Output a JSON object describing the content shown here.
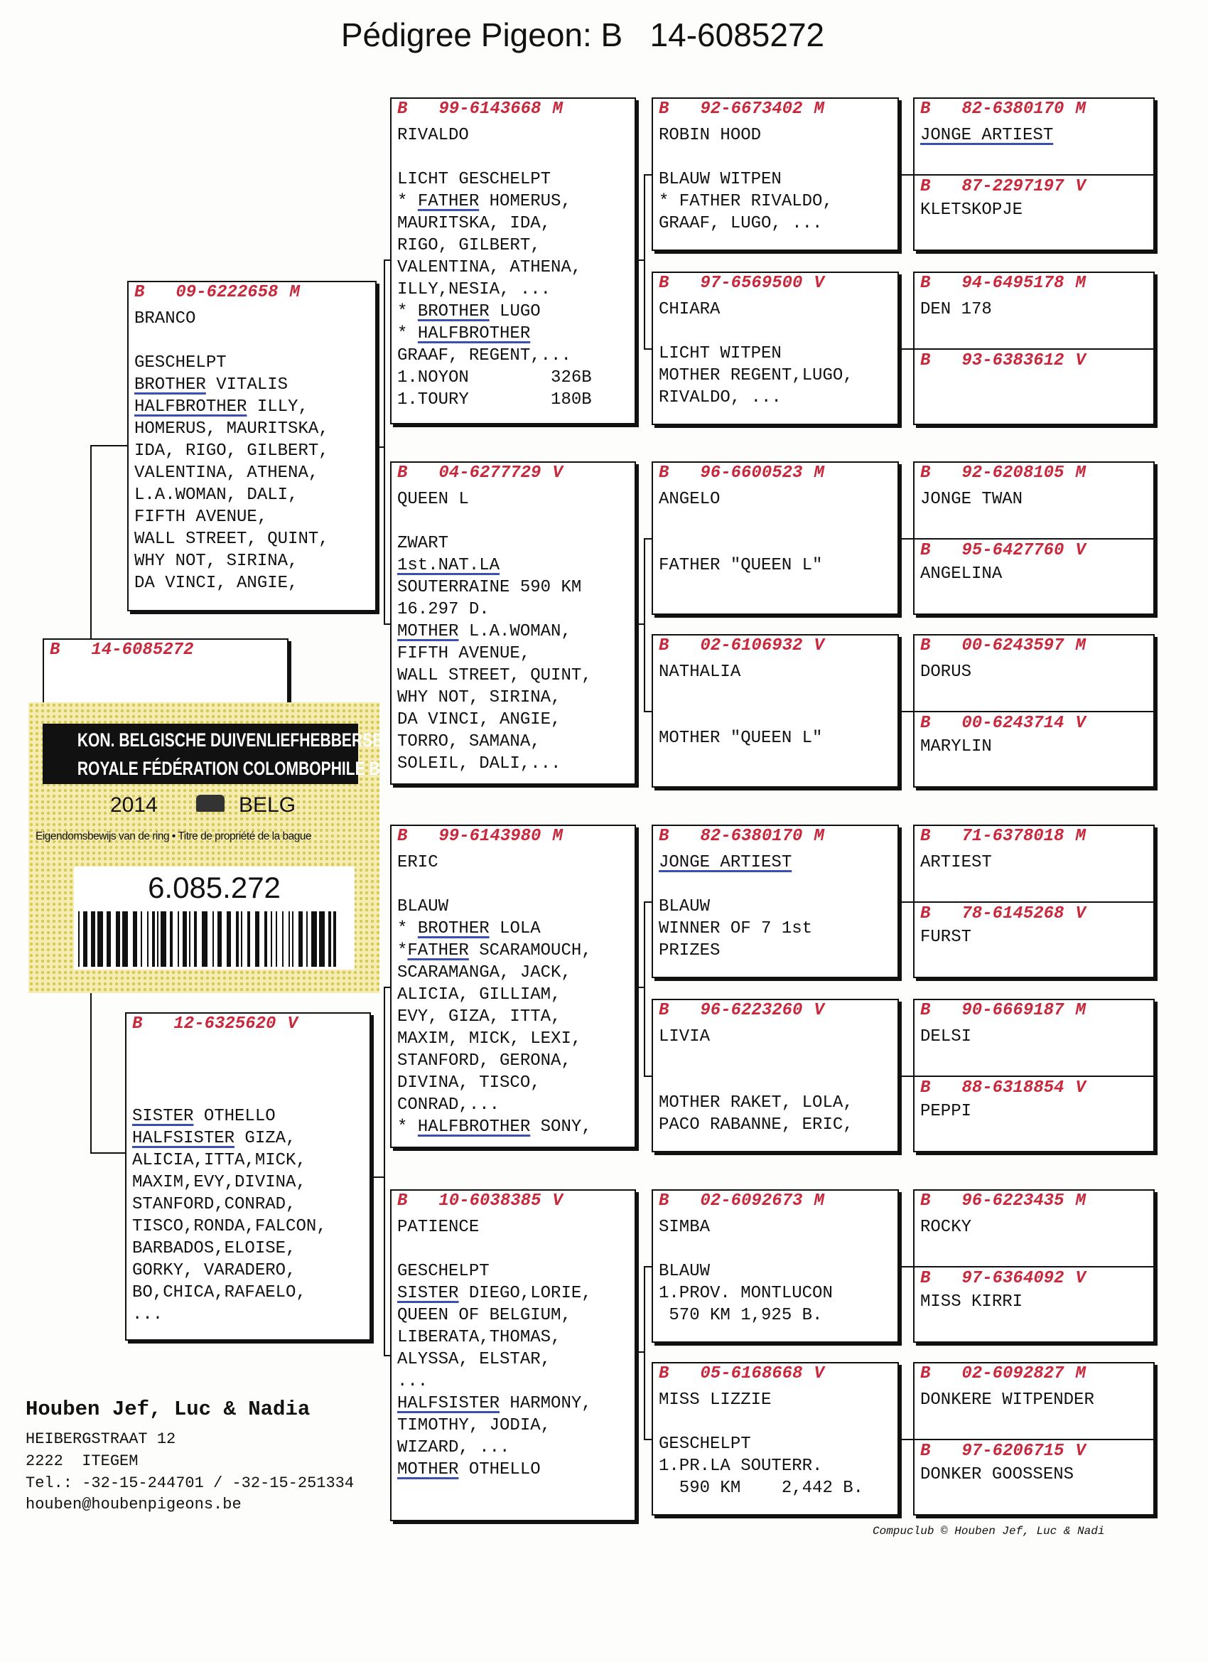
{
  "title": "Pédigree Pigeon: B   14-6085272",
  "subject": {
    "prefix": "B",
    "ring": "14-6085272"
  },
  "ring_card": {
    "line1": "KON. BELGISCHE DUIVENLIEFHEBBERSBOND",
    "line2": "ROYALE FÉDÉRATION COLOMBOPHILE BELGE",
    "year": "2014",
    "country": "BELG",
    "caption": "Eigendomsbewijs van de ring • Titre de propriété de la bague",
    "number": "6.085.272"
  },
  "gen1": [
    {
      "prefix": "B",
      "ring": "09-6222658",
      "sex": "M",
      "lines": [
        "BRANCO",
        null,
        "GESCHELPT",
        [
          {
            "u": "BROTHER"
          },
          " VITALIS"
        ],
        [
          {
            "u": "HALFBROTHER"
          },
          " ILLY,"
        ],
        "HOMERUS, MAURITSKA,",
        "IDA, RIGO, GILBERT,",
        "VALENTINA, ATHENA,",
        "L.A.WOMAN, DALI,",
        "FIFTH AVENUE,",
        "WALL STREET, QUINT,",
        "WHY NOT, SIRINA,",
        "DA VINCI, ANGIE,"
      ]
    },
    {
      "prefix": "B",
      "ring": "12-6325620",
      "sex": "V",
      "lines": [
        null,
        null,
        null,
        [
          {
            "u": "SISTER"
          },
          " OTHELLO"
        ],
        [
          {
            "u": "HALFSISTER"
          },
          " GIZA,"
        ],
        "ALICIA,ITTA,MICK,",
        "MAXIM,EVY,DIVINA,",
        "STANFORD,CONRAD,",
        "TISCO,RONDA,FALCON,",
        "BARBADOS,ELOISE,",
        "GORKY, VARADERO,",
        "BO,CHICA,RAFAELO,",
        "..."
      ]
    }
  ],
  "gen2": [
    {
      "prefix": "B",
      "ring": "99-6143668",
      "sex": "M",
      "lines": [
        "RIVALDO",
        null,
        "LICHT GESCHELPT",
        [
          "* ",
          {
            "u": "FATHER"
          },
          " HOMERUS,"
        ],
        "MAURITSKA, IDA,",
        "RIGO, GILBERT,",
        "VALENTINA, ATHENA,",
        "ILLY,NESIA, ...",
        [
          "* ",
          {
            "u": "BROTHER"
          },
          " LUGO"
        ],
        [
          "* ",
          {
            "u": "HALFBROTHER"
          }
        ],
        "GRAAF, REGENT,...",
        "1.NOYON        326B",
        "1.TOURY        180B"
      ]
    },
    {
      "prefix": "B",
      "ring": "04-6277729",
      "sex": "V",
      "lines": [
        "QUEEN L",
        null,
        "ZWART",
        [
          {
            "u": "1st.NAT.LA"
          }
        ],
        "SOUTERRAINE 590 KM",
        "16.297 D.",
        [
          {
            "u": "MOTHER"
          },
          " L.A.WOMAN,"
        ],
        "FIFTH AVENUE,",
        "WALL STREET, QUINT,",
        "WHY NOT, SIRINA,",
        "DA VINCI, ANGIE,",
        "TORRO, SAMANA,",
        "SOLEIL, DALI,..."
      ]
    },
    {
      "prefix": "B",
      "ring": "99-6143980",
      "sex": "M",
      "lines": [
        "ERIC",
        null,
        "BLAUW",
        [
          "* ",
          {
            "u": "BROTHER"
          },
          " LOLA"
        ],
        [
          "*",
          {
            "u": "FATHER"
          },
          " SCARAMOUCH,"
        ],
        "SCARAMANGA, JACK,",
        "ALICIA, GILLIAM,",
        "EVY, GIZA, ITTA,",
        "MAXIM, MICK, LEXI,",
        "STANFORD, GERONA,",
        "DIVINA, TISCO,",
        "CONRAD,...",
        [
          "* ",
          {
            "u": "HALFBROTHER"
          },
          " SONY,"
        ]
      ]
    },
    {
      "prefix": "B",
      "ring": "10-6038385",
      "sex": "V",
      "lines": [
        "PATIENCE",
        null,
        "GESCHELPT",
        [
          {
            "u": "SISTER"
          },
          " DIEGO,LORIE,"
        ],
        "QUEEN OF BELGIUM,",
        "LIBERATA,THOMAS,",
        "ALYSSA, ELSTAR,",
        "...",
        [
          {
            "u": "HALFSISTER"
          },
          " HARMONY,"
        ],
        "TIMOTHY, JODIA,",
        "WIZARD, ...",
        [
          {
            "u": "MOTHER"
          },
          " OTHELLO"
        ]
      ]
    }
  ],
  "gen3": [
    {
      "prefix": "B",
      "ring": "92-6673402",
      "sex": "M",
      "lines": [
        "ROBIN HOOD",
        null,
        "BLAUW WITPEN",
        "* FATHER RIVALDO,",
        "GRAAF, LUGO, ..."
      ]
    },
    {
      "prefix": "B",
      "ring": "97-6569500",
      "sex": "V",
      "lines": [
        "CHIARA",
        null,
        "LICHT WITPEN",
        "MOTHER REGENT,LUGO,",
        "RIVALDO, ..."
      ]
    },
    {
      "prefix": "B",
      "ring": "96-6600523",
      "sex": "M",
      "lines": [
        "ANGELO",
        null,
        null,
        "FATHER \"QUEEN L\""
      ]
    },
    {
      "prefix": "B",
      "ring": "02-6106932",
      "sex": "V",
      "lines": [
        "NATHALIA",
        null,
        null,
        "MOTHER \"QUEEN L\""
      ]
    },
    {
      "prefix": "B",
      "ring": "82-6380170",
      "sex": "M",
      "lines": [
        [
          {
            "u": "JONGE ARTIEST"
          }
        ],
        null,
        "BLAUW",
        "WINNER OF 7 1st",
        "PRIZES"
      ]
    },
    {
      "prefix": "B",
      "ring": "96-6223260",
      "sex": "V",
      "lines": [
        "LIVIA",
        null,
        null,
        "MOTHER RAKET, LOLA,",
        "PACO RABANNE, ERIC,"
      ]
    },
    {
      "prefix": "B",
      "ring": "02-6092673",
      "sex": "M",
      "lines": [
        "SIMBA",
        null,
        "BLAUW",
        "1.PROV. MONTLUCON",
        " 570 KM 1,925 B."
      ]
    },
    {
      "prefix": "B",
      "ring": "05-6168668",
      "sex": "V",
      "lines": [
        "MISS LIZZIE",
        null,
        "GESCHELPT",
        "1.PR.LA SOUTERR.",
        "  590 KM    2,442 B."
      ]
    }
  ],
  "gen4": [
    {
      "prefix": "B",
      "ring": "82-6380170",
      "sex": "M",
      "lines": [
        [
          {
            "u": "JONGE ARTIEST"
          }
        ]
      ]
    },
    {
      "prefix": "B",
      "ring": "87-2297197",
      "sex": "V",
      "lines": [
        "KLETSKOPJE"
      ]
    },
    {
      "prefix": "B",
      "ring": "94-6495178",
      "sex": "M",
      "lines": [
        "DEN 178"
      ]
    },
    {
      "prefix": "B",
      "ring": "93-6383612",
      "sex": "V"
    },
    {
      "prefix": "B",
      "ring": "92-6208105",
      "sex": "M",
      "lines": [
        "JONGE TWAN"
      ]
    },
    {
      "prefix": "B",
      "ring": "95-6427760",
      "sex": "V",
      "lines": [
        "ANGELINA"
      ]
    },
    {
      "prefix": "B",
      "ring": "00-6243597",
      "sex": "M",
      "lines": [
        "DORUS"
      ]
    },
    {
      "prefix": "B",
      "ring": "00-6243714",
      "sex": "V",
      "lines": [
        "MARYLIN"
      ]
    },
    {
      "prefix": "B",
      "ring": "71-6378018",
      "sex": "M",
      "lines": [
        "ARTIEST"
      ]
    },
    {
      "prefix": "B",
      "ring": "78-6145268",
      "sex": "V",
      "lines": [
        "FURST"
      ]
    },
    {
      "prefix": "B",
      "ring": "90-6669187",
      "sex": "M",
      "lines": [
        "DELSI"
      ]
    },
    {
      "prefix": "B",
      "ring": "88-6318854",
      "sex": "V",
      "lines": [
        "PEPPI"
      ]
    },
    {
      "prefix": "B",
      "ring": "96-6223435",
      "sex": "M",
      "lines": [
        "ROCKY"
      ]
    },
    {
      "prefix": "B",
      "ring": "97-6364092",
      "sex": "V",
      "lines": [
        "MISS KIRRI"
      ]
    },
    {
      "prefix": "B",
      "ring": "02-6092827",
      "sex": "M",
      "lines": [
        "DONKERE WITPENDER"
      ]
    },
    {
      "prefix": "B",
      "ring": "97-6206715",
      "sex": "V",
      "lines": [
        "DONKER GOOSSENS"
      ]
    }
  ],
  "owner": {
    "name": "Houben Jef, Luc & Nadia",
    "street": "HEIBERGSTRAAT 12",
    "city": "2222  ITEGEM",
    "phone": "Tel.: -32-15-244701 / -32-15-251334",
    "email": "houben@houbenpigeons.be"
  },
  "footer": "Compuclub © Houben Jef, Luc & Nadi"
}
